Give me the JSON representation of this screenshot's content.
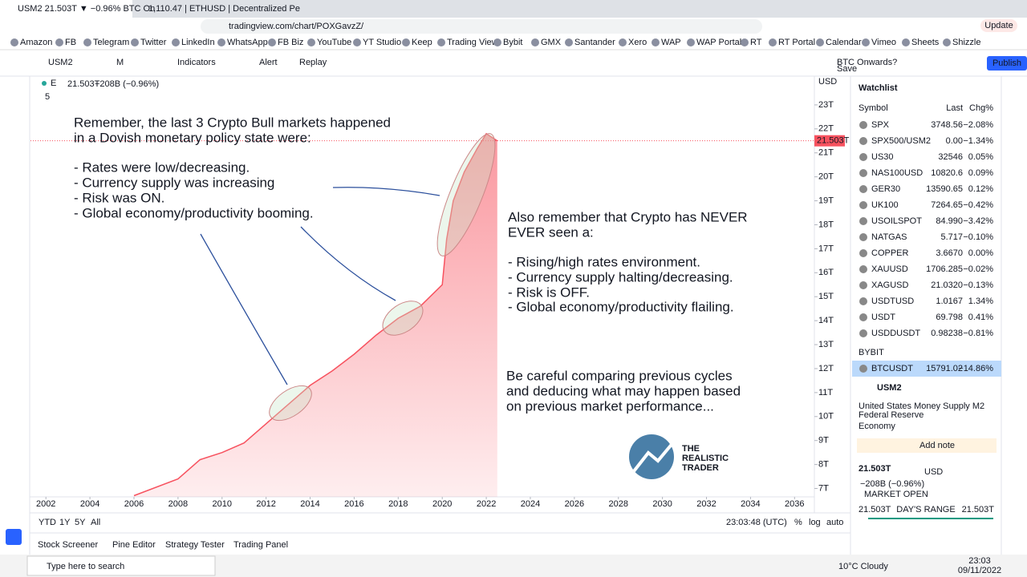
{
  "browser": {
    "tabs": [
      "USM2 21.503T ▼ −0.96% BTC On",
      "1,110.47 | ETHUSD | Decentralized Pe"
    ],
    "url": "tradingview.com/chart/POXGavzZ/",
    "update": "Update",
    "bookmarks": [
      "Amazon",
      "FB",
      "Telegram",
      "Twitter",
      "LinkedIn",
      "WhatsApp",
      "FB Biz",
      "YouTube",
      "YT Studio",
      "Keep",
      "Trading View",
      "Bybit",
      "GMX",
      "Santander",
      "Xero",
      "WAP",
      "WAP Portal",
      "RT",
      "RT Portal",
      "Calendar",
      "Vimeo",
      "Sheets",
      "Shizzle"
    ]
  },
  "toolbar": {
    "symbol": "USM2",
    "interval": "M",
    "indicators": "Indicators",
    "alert": "Alert",
    "replay": "Replay",
    "layout": "BTC Onwards?",
    "save": "Save",
    "publish": "Publish"
  },
  "legend": {
    "exchange": "E",
    "value": "21.503T",
    "change": "−208B (−0.96%)",
    "count": "5",
    "currency": "USD"
  },
  "annotations": {
    "teal": [
      "Remember, the last 3 Crypto Bull markets happened",
      " in a Dovish monetary policy state were:",
      "- Rates were low/decreasing.",
      "- Currency supply was increasing",
      "- Risk was ON.",
      "- Global economy/productivity booming."
    ],
    "red": [
      "Also remember that Crypto has NEVER",
      "EVER seen a:",
      "- Rising/high rates environment.",
      "- Currency supply halting/decreasing.",
      "- Risk is OFF.",
      "- Global economy/productivity flailing."
    ],
    "blue": [
      "Be careful comparing previous cycles",
      "and deducing what may happen based",
      "on previous market performance..."
    ],
    "logo": [
      "THE",
      "REALISTIC",
      "TRADER"
    ]
  },
  "chart_data": {
    "type": "area",
    "color": "#f7525f",
    "x": [
      2006.0,
      2008.0,
      2009.0,
      2010.0,
      2011.0,
      2012.0,
      2013.0,
      2014.0,
      2015.0,
      2016.0,
      2017.0,
      2018.0,
      2019.0,
      2020.0,
      2020.2,
      2020.5,
      2021.0,
      2021.6,
      2022.0,
      2022.5
    ],
    "values": [
      6.7,
      7.4,
      8.2,
      8.5,
      8.9,
      9.7,
      10.5,
      11.3,
      11.9,
      12.6,
      13.4,
      14.1,
      14.6,
      15.5,
      17.4,
      19.0,
      20.2,
      21.2,
      21.8,
      21.5
    ],
    "last": {
      "value": 21.503,
      "label": "21.503T"
    },
    "xlim": [
      2001.3,
      2036.9
    ],
    "ylim": [
      6.65,
      24.2
    ],
    "xticks": [
      2002,
      2004,
      2006,
      2008,
      2010,
      2012,
      2014,
      2016,
      2018,
      2020,
      2022,
      2024,
      2026,
      2028,
      2030,
      2032,
      2034,
      2036
    ],
    "yticks": [
      {
        "value": 7,
        "label": "7T"
      },
      {
        "value": 8,
        "label": "8T"
      },
      {
        "value": 9,
        "label": "9T"
      },
      {
        "value": 10,
        "label": "10T"
      },
      {
        "value": 11,
        "label": "11T"
      },
      {
        "value": 12,
        "label": "12T"
      },
      {
        "value": 13,
        "label": "13T"
      },
      {
        "value": 14,
        "label": "14T"
      },
      {
        "value": 15,
        "label": "15T"
      },
      {
        "value": 16,
        "label": "16T"
      },
      {
        "value": 17,
        "label": "17T"
      },
      {
        "value": 18,
        "label": "18T"
      },
      {
        "value": 19,
        "label": "19T"
      },
      {
        "value": 20,
        "label": "20T"
      },
      {
        "value": 21,
        "label": "21T"
      },
      {
        "value": 22,
        "label": "22T"
      },
      {
        "value": 23,
        "label": "23T"
      }
    ]
  },
  "watchlist": {
    "title": "Watchlist",
    "columns": [
      "Symbol",
      "Last",
      "Chg%"
    ],
    "rows": [
      [
        "SPX",
        "3748.56",
        "−2.08%"
      ],
      [
        "SPX500/USM2",
        "0.00",
        "−1.34%"
      ],
      [
        "US30",
        "32546",
        "0.05%"
      ],
      [
        "NAS100USD",
        "10820.6",
        "0.09%"
      ],
      [
        "GER30",
        "13590.65",
        "0.12%"
      ],
      [
        "UK100",
        "7264.65",
        "−0.42%"
      ],
      [
        "USOILSPOT",
        "84.990",
        "−3.42%"
      ],
      [
        "NATGAS",
        "5.717",
        "−0.10%"
      ],
      [
        "COPPER",
        "3.6670",
        "0.00%"
      ],
      [
        "XAUUSD",
        "1706.285",
        "−0.02%"
      ],
      [
        "XAGUSD",
        "21.0320",
        "−0.13%"
      ],
      [
        "USDTUSD",
        "1.0167",
        "1.34%"
      ],
      [
        "USDT",
        "69.798",
        "0.41%"
      ],
      [
        "USDDUSDT",
        "0.98238",
        "−0.81%"
      ]
    ],
    "section": "BYBIT",
    "highlight": [
      "BTCUSDT",
      "15791.02",
      "−14.86%"
    ]
  },
  "details": {
    "symbol": "USM2",
    "name": "United States Money Supply M2",
    "source": "Federal Reserve",
    "category": "Economy",
    "add_note": "Add note",
    "price": "21.503T",
    "currency": "USD",
    "change": "−208B (−0.96%)",
    "status": "MARKET OPEN",
    "range_low": "21.503T",
    "range_title": "DAY'S RANGE",
    "range_high": "21.503T"
  },
  "bottom": {
    "ranges": [
      "YTD",
      "1Y",
      "5Y",
      "All"
    ],
    "time": "23:03:48 (UTC)",
    "options": [
      "%",
      "log",
      "auto"
    ],
    "panels": [
      "Stock Screener",
      "Pine Editor",
      "Strategy Tester",
      "Trading Panel"
    ]
  },
  "taskbar": {
    "search": "Type here to search",
    "weather": "10°C Cloudy",
    "clock": "23:03",
    "date": "09/11/2022"
  }
}
